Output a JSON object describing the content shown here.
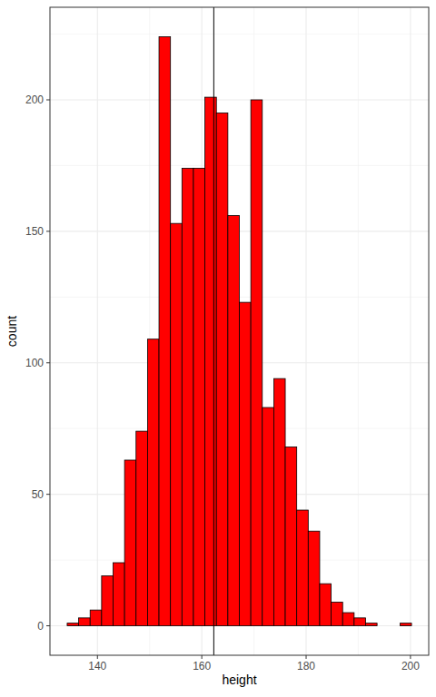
{
  "chart_data": {
    "type": "histogram",
    "x_label": "height",
    "y_label": "count",
    "bins": [
      134.2,
      136.4,
      138.6,
      140.8,
      143,
      145.2,
      147.4,
      149.6,
      151.8,
      154,
      156.2,
      158.4,
      160.6,
      162.8,
      165,
      167.2,
      169.4,
      171.6,
      173.8,
      176,
      178.2,
      180.4,
      182.6,
      184.8,
      187,
      189.2,
      191.4,
      193.6,
      195.8,
      198,
      200.2
    ],
    "values": [
      1,
      3,
      6,
      19,
      24,
      63,
      74,
      109,
      224,
      153,
      174,
      174,
      201,
      195,
      156,
      123,
      200,
      83,
      94,
      68,
      44,
      36,
      16,
      9,
      5,
      3,
      1,
      0,
      0,
      1
    ],
    "vline": 162.3,
    "color": "#ff0000",
    "xlim": [
      130.9,
      203.5
    ],
    "xticks": [
      140,
      160,
      180,
      200
    ],
    "ylim": [
      -11.2,
      235.2
    ],
    "yticks": [
      0,
      50,
      100,
      150,
      200
    ],
    "grid": true
  }
}
